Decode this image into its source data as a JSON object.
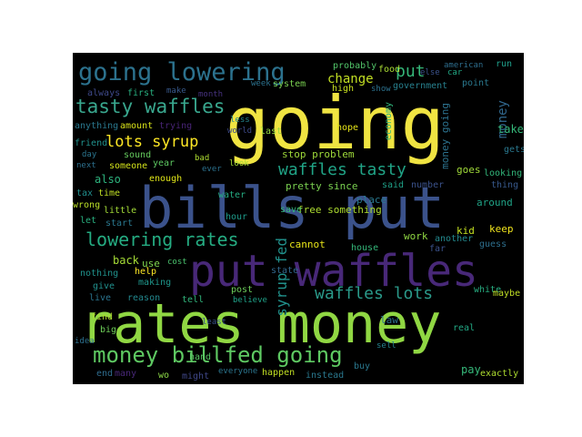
{
  "cloud": {
    "background": "#000000",
    "words": [
      {
        "text": "going",
        "color": "#f0e442"
      },
      {
        "text": "bills put",
        "color": "#3b528b"
      },
      {
        "text": "rates money",
        "color": "#90d743"
      },
      {
        "text": "put waffles",
        "color": "#482878"
      },
      {
        "text": "going lowering",
        "color": "#2c728e"
      },
      {
        "text": "tasty waffles",
        "color": "#39a78e"
      },
      {
        "text": "lots syrup",
        "color": "#fde725"
      },
      {
        "text": "waffles tasty",
        "color": "#20a386"
      },
      {
        "text": "lowering rates",
        "color": "#25ac82"
      },
      {
        "text": "money billfed going",
        "color": "#5ec962"
      },
      {
        "text": "waffles lots",
        "color": "#2a9a8a"
      },
      {
        "text": "syrup fed",
        "color": "#21918c"
      },
      {
        "text": "put",
        "color": "#35b779"
      },
      {
        "text": "money",
        "color": "#31688e"
      },
      {
        "text": "change",
        "color": "#c2df23"
      },
      {
        "text": "money going",
        "color": "#2c728e"
      },
      {
        "text": "free something",
        "color": "#addc30"
      },
      {
        "text": "pretty since",
        "color": "#7ad151"
      },
      {
        "text": "stop problem",
        "color": "#9fda3a"
      },
      {
        "text": "probably",
        "color": "#52c569"
      },
      {
        "text": "food",
        "color": "#a8db34"
      },
      {
        "text": "else",
        "color": "#3b528b"
      },
      {
        "text": "car",
        "color": "#22a884"
      },
      {
        "text": "american",
        "color": "#2e6e8e"
      },
      {
        "text": "run",
        "color": "#1f9e89"
      },
      {
        "text": "point",
        "color": "#2a788e"
      },
      {
        "text": "government",
        "color": "#27808e"
      },
      {
        "text": "high",
        "color": "#c8e020"
      },
      {
        "text": "show",
        "color": "#2c728e"
      },
      {
        "text": "always",
        "color": "#3e4989"
      },
      {
        "text": "first",
        "color": "#29af7f"
      },
      {
        "text": "make",
        "color": "#38598c"
      },
      {
        "text": "month",
        "color": "#46327e"
      },
      {
        "text": "week",
        "color": "#2c728e"
      },
      {
        "text": "system",
        "color": "#7ad151"
      },
      {
        "text": "anything",
        "color": "#2a788e"
      },
      {
        "text": "amount",
        "color": "#d8e219"
      },
      {
        "text": "trying",
        "color": "#482475"
      },
      {
        "text": "less",
        "color": "#24868e"
      },
      {
        "text": "world",
        "color": "#3e4a89"
      },
      {
        "text": "last",
        "color": "#95d840"
      },
      {
        "text": "hope",
        "color": "#e5e419"
      },
      {
        "text": "economy",
        "color": "#31b57b"
      },
      {
        "text": "take",
        "color": "#35b779"
      },
      {
        "text": "gets",
        "color": "#2a788e"
      },
      {
        "text": "friend",
        "color": "#21918c"
      },
      {
        "text": "day",
        "color": "#2b758e"
      },
      {
        "text": "next",
        "color": "#2d708e"
      },
      {
        "text": "sound",
        "color": "#65cb5e"
      },
      {
        "text": "someone",
        "color": "#d2e21b"
      },
      {
        "text": "year",
        "color": "#5ec962"
      },
      {
        "text": "bad",
        "color": "#addc30"
      },
      {
        "text": "ever",
        "color": "#2c728e"
      },
      {
        "text": "also",
        "color": "#2db27d"
      },
      {
        "text": "enough",
        "color": "#dde318"
      },
      {
        "text": "look",
        "color": "#a5db36"
      },
      {
        "text": "goes",
        "color": "#a0da39"
      },
      {
        "text": "looking",
        "color": "#32b67a"
      },
      {
        "text": "tax",
        "color": "#218f8d"
      },
      {
        "text": "time",
        "color": "#c0df25"
      },
      {
        "text": "water",
        "color": "#25ac82"
      },
      {
        "text": "said",
        "color": "#1fa188"
      },
      {
        "text": "number",
        "color": "#3b528b"
      },
      {
        "text": "thing",
        "color": "#38598c"
      },
      {
        "text": "wrong",
        "color": "#bade28"
      },
      {
        "text": "little",
        "color": "#a2da37"
      },
      {
        "text": "hour",
        "color": "#1e9b8a"
      },
      {
        "text": "place",
        "color": "#2a788e"
      },
      {
        "text": "around",
        "color": "#20a386"
      },
      {
        "text": "let",
        "color": "#29af7f"
      },
      {
        "text": "start",
        "color": "#2a778e"
      },
      {
        "text": "save",
        "color": "#35b779"
      },
      {
        "text": "kid",
        "color": "#c5e021"
      },
      {
        "text": "keep",
        "color": "#f1e51d"
      },
      {
        "text": "work",
        "color": "#90d743"
      },
      {
        "text": "another",
        "color": "#23898e"
      },
      {
        "text": "guess",
        "color": "#2e6f8e"
      },
      {
        "text": "back",
        "color": "#a5db36"
      },
      {
        "text": "use",
        "color": "#7fd34e"
      },
      {
        "text": "cannot",
        "color": "#e7e419"
      },
      {
        "text": "house",
        "color": "#34b679"
      },
      {
        "text": "far",
        "color": "#3b528b"
      },
      {
        "text": "help",
        "color": "#fde725"
      },
      {
        "text": "cost",
        "color": "#4ac16d"
      },
      {
        "text": "state",
        "color": "#31688e"
      },
      {
        "text": "nothing",
        "color": "#20928c"
      },
      {
        "text": "making",
        "color": "#1f968b"
      },
      {
        "text": "give",
        "color": "#21908d"
      },
      {
        "text": "post",
        "color": "#6ccd5a"
      },
      {
        "text": "white",
        "color": "#27ad81"
      },
      {
        "text": "live",
        "color": "#2b748e"
      },
      {
        "text": "reason",
        "color": "#23888e"
      },
      {
        "text": "tell",
        "color": "#31b57b"
      },
      {
        "text": "believe",
        "color": "#1fa188"
      },
      {
        "text": "maybe",
        "color": "#c0df25"
      },
      {
        "text": "find",
        "color": "#addc30"
      },
      {
        "text": "law",
        "color": "#2c728e"
      },
      {
        "text": "real",
        "color": "#22a884"
      },
      {
        "text": "big",
        "color": "#6ece58"
      },
      {
        "text": "end",
        "color": "#2f6c8e"
      },
      {
        "text": "many",
        "color": "#482878"
      },
      {
        "text": "might",
        "color": "#3f4788"
      },
      {
        "text": "happen",
        "color": "#c2df23"
      },
      {
        "text": "instead",
        "color": "#2a788e"
      },
      {
        "text": "buy",
        "color": "#2a788e"
      },
      {
        "text": "pay",
        "color": "#35b779"
      },
      {
        "text": "exactly",
        "color": "#addc30"
      },
      {
        "text": "everyone",
        "color": "#2b758e"
      },
      {
        "text": "hand",
        "color": "#58c765"
      },
      {
        "text": "wo",
        "color": "#8bd646"
      },
      {
        "text": "idea",
        "color": "#2d708e"
      },
      {
        "text": "least",
        "color": "#3b528b"
      },
      {
        "text": "sell",
        "color": "#26828e"
      }
    ]
  }
}
